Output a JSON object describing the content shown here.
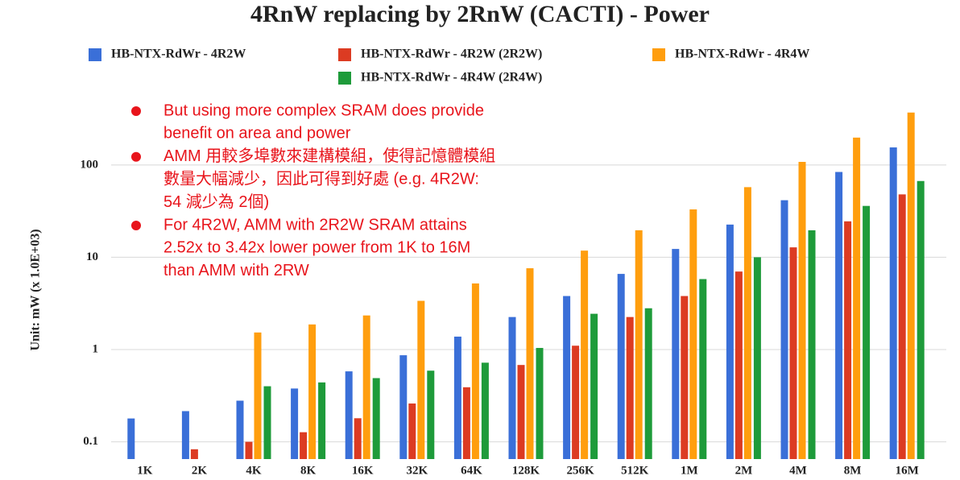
{
  "chart_data": {
    "type": "bar",
    "title": "4RnW replacing by 2RnW (CACTI) - Power",
    "y_label": "Unit: mW (x 1.0E+03)",
    "log_y": true,
    "grid": true,
    "legend": "top",
    "ylim": [
      0.065,
      450
    ],
    "yticks": [
      0.1,
      1,
      10,
      100
    ],
    "categories": [
      "1K",
      "2K",
      "4K",
      "8K",
      "16K",
      "32K",
      "64K",
      "128K",
      "256K",
      "512K",
      "1M",
      "2M",
      "4M",
      "8M",
      "16M"
    ],
    "series": [
      {
        "name": "HB-NTX-RdWr - 4R2W",
        "color": "#3a6fd8",
        "values": [
          0.179,
          0.215,
          0.279,
          0.378,
          0.58,
          0.867,
          1.38,
          2.25,
          3.8,
          6.6,
          12.3,
          22.6,
          41.5,
          84,
          155
        ]
      },
      {
        "name": "HB-NTX-RdWr - 4R2W (2R2W)",
        "color": "#dc3b22",
        "values": [
          null,
          0.083,
          0.1,
          0.127,
          0.18,
          0.26,
          0.39,
          0.68,
          1.1,
          2.25,
          3.8,
          7.0,
          12.8,
          24.5,
          48
        ]
      },
      {
        "name": "HB-NTX-RdWr - 4R4W",
        "color": "#ff9e0e",
        "values": [
          null,
          null,
          1.53,
          1.87,
          2.34,
          3.37,
          5.2,
          7.6,
          11.8,
          19.6,
          33,
          57.5,
          108,
          198,
          370
        ]
      },
      {
        "name": "HB-NTX-RdWr - 4R4W (2R4W)",
        "color": "#1e9b3a",
        "values": [
          null,
          null,
          0.4,
          0.44,
          0.49,
          0.59,
          0.72,
          1.04,
          2.44,
          2.8,
          5.8,
          10,
          19.6,
          36,
          67
        ]
      }
    ],
    "annotations": [
      [
        "But using more complex SRAM does provide",
        "benefit on area and power"
      ],
      [
        "AMM 用較多埠數來建構模組，使得記憶體模組",
        "數量大幅減少，因此可得到好處 (e.g. 4R2W:",
        "54 減少為 2個)"
      ],
      [
        "For 4R2W, AMM with 2R2W SRAM attains",
        "2.52x to 3.42x lower power from 1K to 16M",
        "than AMM with 2RW"
      ]
    ],
    "annotation_color": "#e8141b"
  }
}
